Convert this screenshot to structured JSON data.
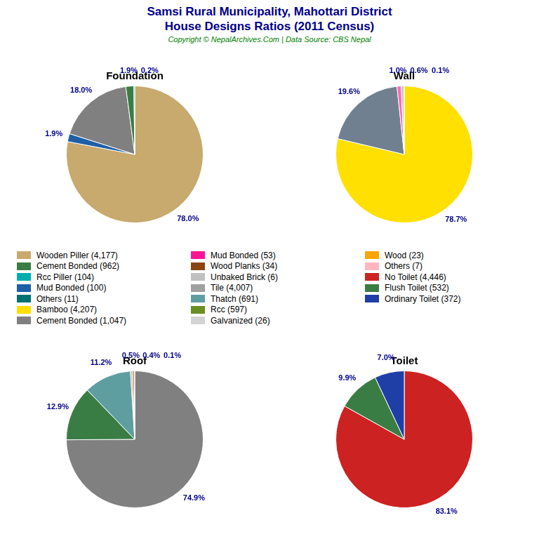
{
  "title": "Samsi Rural Municipality, Mahottari District",
  "subtitle": "House Designs Ratios (2011 Census)",
  "annotations": [
    "Copyright © NepalArchives.Com | Data Source: CBS Nepal"
  ],
  "legend_items": [
    {
      "label": "Wooden Piller (4,177)",
      "color": "#C8A96E"
    },
    {
      "label": "Cement Bonded (962)",
      "color": "#3A7D44"
    },
    {
      "label": "Rcc Piller (104)",
      "color": "#00AEAE"
    },
    {
      "label": "Mud Bonded (100)",
      "color": "#1F5FA6"
    },
    {
      "label": "Others (11)",
      "color": "#007070"
    },
    {
      "label": "Bamboo (4,207)",
      "color": "#FFE000"
    },
    {
      "label": "Cement Bonded (1,047)",
      "color": "#808080"
    },
    {
      "label": "Mud Bonded (53)",
      "color": "#FF1493"
    },
    {
      "label": "Wood Planks (34)",
      "color": "#8B4513"
    },
    {
      "label": "Unbaked Brick (6)",
      "color": "#C0C0C0"
    },
    {
      "label": "Tile (4,007)",
      "color": "#A0A0A0"
    },
    {
      "label": "Thatch (691)",
      "color": "#5F9EA0"
    },
    {
      "label": "Rcc (597)",
      "color": "#6B8E23"
    },
    {
      "label": "Galvanized (26)",
      "color": "#D3D3D3"
    },
    {
      "label": "Wood (23)",
      "color": "#FFA500"
    },
    {
      "label": "Others (7)",
      "color": "#FFB6C1"
    },
    {
      "label": "No Toilet (4,446)",
      "color": "#CC2222"
    },
    {
      "label": "Flush Toilet (532)",
      "color": "#3A7D44"
    },
    {
      "label": "Ordinary Toilet (372)",
      "color": "#1F3FA6"
    }
  ],
  "chart_data": [
    {
      "type": "pie",
      "title": "Foundation",
      "values": [
        78.0,
        1.9,
        18.0,
        1.9,
        0.2
      ],
      "value_labels": [
        "78.0%",
        "1.9%",
        "18.0%",
        "1.9%",
        "0.2%"
      ],
      "colors": [
        "#C8A96E",
        "#1F5FA6",
        "#808080",
        "#3A7D44",
        "#00AEAE"
      ],
      "data_labels": true
    },
    {
      "type": "pie",
      "title": "Wall",
      "values": [
        78.7,
        19.6,
        1.0,
        0.6,
        0.1
      ],
      "value_labels": [
        "78.7%",
        "19.6%",
        "1.0%",
        "0.6%",
        "0.1%"
      ],
      "colors": [
        "#FFE000",
        "#708090",
        "#FF69B4",
        "#C0C0C0",
        "#00CED1"
      ],
      "data_labels": true
    },
    {
      "type": "pie",
      "title": "Roof",
      "values": [
        74.9,
        12.9,
        11.2,
        0.5,
        0.4,
        0.1
      ],
      "value_labels": [
        "74.9%",
        "12.9%",
        "11.2%",
        "0.5%",
        "0.4%",
        "0.1%"
      ],
      "colors": [
        "#808080",
        "#3A7D44",
        "#5F9EA0",
        "#C0C0C0",
        "#D2691E",
        "#FFA500"
      ],
      "data_labels": true
    },
    {
      "type": "pie",
      "title": "Toilet",
      "values": [
        83.1,
        9.9,
        7.0
      ],
      "value_labels": [
        "83.1%",
        "9.9%",
        "7.0%"
      ],
      "colors": [
        "#CC2222",
        "#3A7D44",
        "#1F3FA6"
      ],
      "data_labels": true
    }
  ]
}
